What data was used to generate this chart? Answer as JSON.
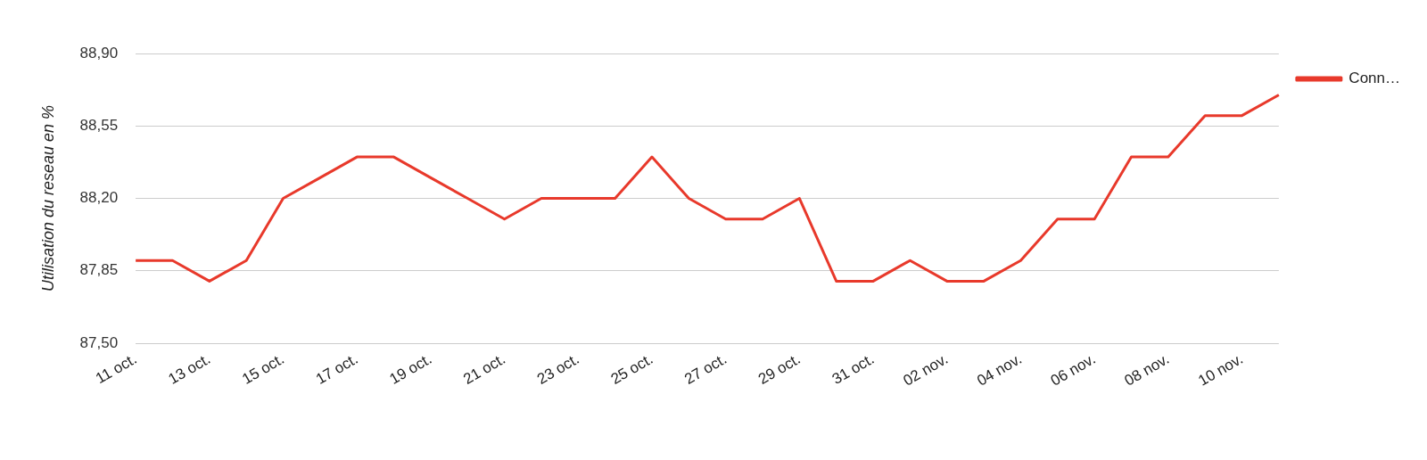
{
  "chart_data": {
    "type": "line",
    "ylabel": "Utilisation du reseau en %",
    "categories": [
      "11 oct.",
      null,
      "13 oct.",
      null,
      "15 oct.",
      null,
      "17 oct.",
      null,
      "19 oct.",
      null,
      "21 oct.",
      null,
      "23 oct.",
      null,
      "25 oct.",
      null,
      "27 oct.",
      null,
      "29 oct.",
      null,
      "31 oct.",
      null,
      "02 nov.",
      null,
      "04 nov.",
      null,
      "06 nov.",
      null,
      "08 nov.",
      null,
      "10 nov.",
      null
    ],
    "series": [
      {
        "name": "Conn…",
        "color": "#e8392b",
        "values": [
          87.9,
          87.9,
          87.8,
          87.9,
          88.2,
          88.3,
          88.4,
          88.4,
          88.3,
          88.2,
          88.1,
          88.2,
          88.2,
          88.2,
          88.4,
          88.2,
          88.1,
          88.1,
          88.2,
          87.8,
          87.8,
          87.9,
          87.8,
          87.8,
          87.9,
          88.1,
          88.1,
          88.4,
          88.4,
          88.6,
          88.6,
          88.7
        ]
      }
    ],
    "ylim": [
      87.5,
      88.9
    ],
    "yticks": [
      {
        "value": 87.5,
        "label": "87,50"
      },
      {
        "value": 87.85,
        "label": "87,85"
      },
      {
        "value": 88.2,
        "label": "88,20"
      },
      {
        "value": 88.55,
        "label": "88,55"
      },
      {
        "value": 88.9,
        "label": "88,90"
      }
    ],
    "grid": "y",
    "legend": "top right",
    "marker": "none",
    "line_style": "solid"
  }
}
